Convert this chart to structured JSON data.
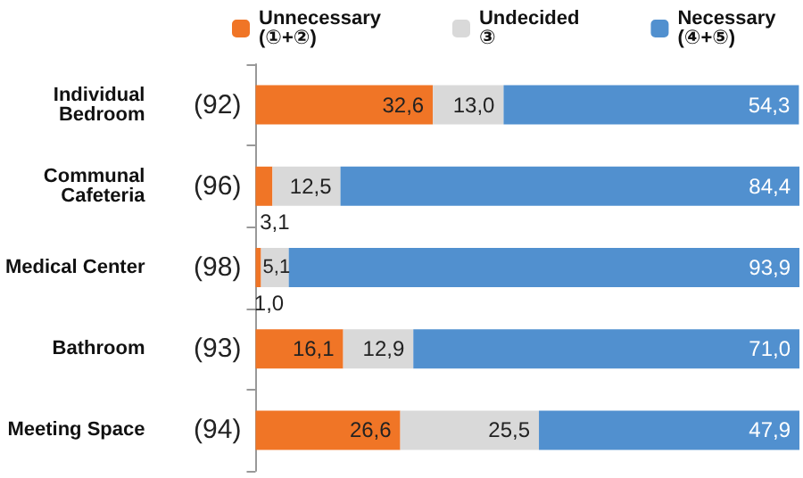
{
  "chart_data": {
    "type": "bar",
    "orientation": "horizontal",
    "stacked": true,
    "legend": "top",
    "categories": [
      "Individual\nBedroom",
      "Communal\nCafeteria",
      "Medical Center",
      "Bathroom",
      "Meeting Space"
    ],
    "annotations": [
      "(92)",
      "(96)",
      "(98)",
      "(93)",
      "(94)"
    ],
    "series": [
      {
        "name": "Unnecessary\n(①+②)",
        "color": "#f07526",
        "values": [
          32.6,
          3.1,
          1.0,
          16.1,
          26.6
        ],
        "value_labels": [
          "32,6",
          "3,1",
          "1,0",
          "16,1",
          "26,6"
        ]
      },
      {
        "name": "Undecided\n③",
        "color": "#d9d9d9",
        "values": [
          13.0,
          12.5,
          5.1,
          12.9,
          25.5
        ],
        "value_labels": [
          "13,0",
          "12,5",
          "5,1",
          "12,9",
          "25,5"
        ]
      },
      {
        "name": "Necessary\n(④+⑤)",
        "color": "#5190cf",
        "values": [
          54.3,
          84.4,
          93.9,
          71.0,
          47.9
        ],
        "value_labels": [
          "54,3",
          "84,4",
          "93,9",
          "71,0",
          "47,9"
        ]
      }
    ]
  }
}
